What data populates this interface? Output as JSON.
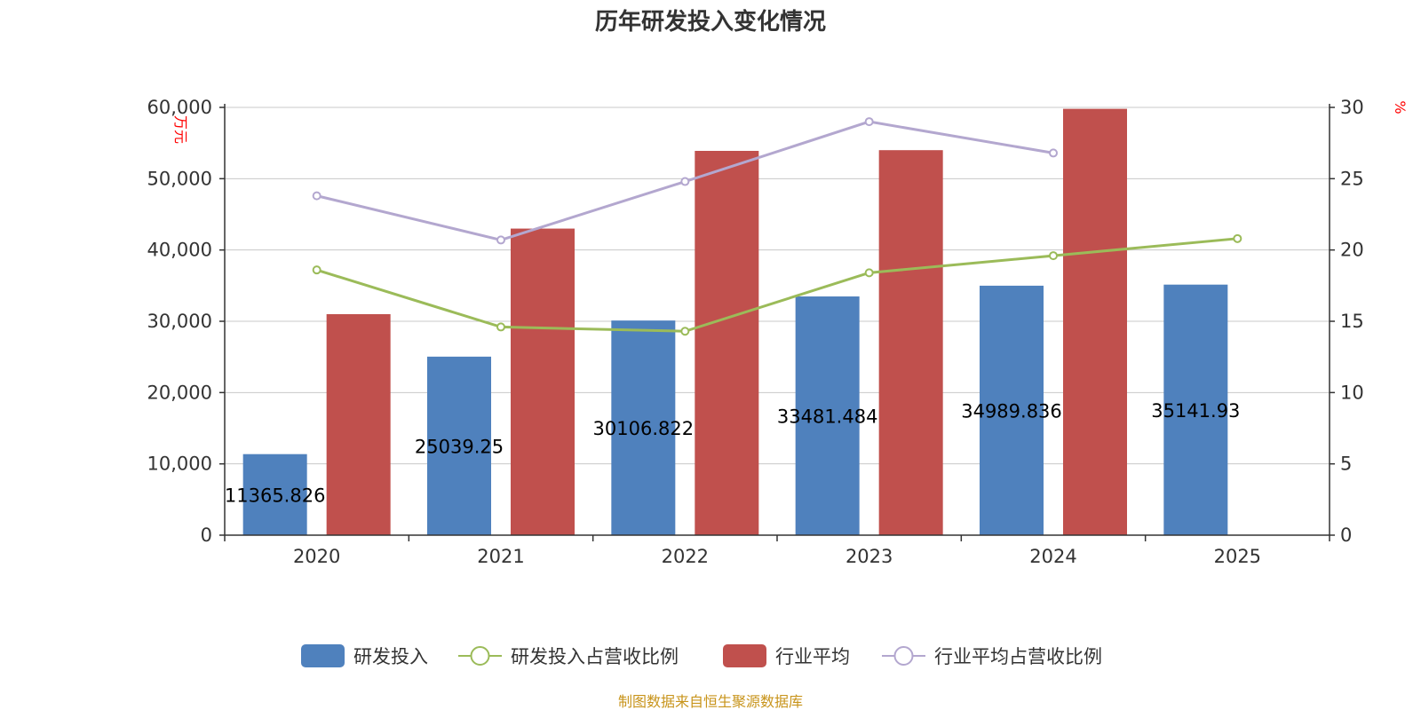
{
  "chart_data": {
    "type": "bar",
    "title": "历年研发投入变化情况",
    "categories": [
      "2020",
      "2021",
      "2022",
      "2023",
      "2024",
      "2025"
    ],
    "y_left": {
      "unit": "万元",
      "ylim": [
        0,
        60000
      ],
      "ticks": [
        "0",
        "10,000",
        "20,000",
        "30,000",
        "40,000",
        "50,000",
        "60,000"
      ]
    },
    "y_right": {
      "unit": "%",
      "ylim": [
        0,
        30
      ],
      "ticks": [
        "0",
        "5",
        "10",
        "15",
        "20",
        "25",
        "30"
      ]
    },
    "series": [
      {
        "name": "研发投入",
        "type": "bar",
        "axis": "left",
        "color": "#4f81bd",
        "values": [
          11365.826,
          25039.25,
          30106.822,
          33481.484,
          34989.836,
          35141.93
        ],
        "labels": [
          "11365.826",
          "25039.25",
          "30106.822",
          "33481.484",
          "34989.836",
          "35141.93"
        ]
      },
      {
        "name": "研发投入占营收比例",
        "type": "line",
        "axis": "right",
        "color": "#9bbb59",
        "values": [
          18.6,
          14.6,
          14.3,
          18.4,
          19.6,
          20.8
        ]
      },
      {
        "name": "行业平均",
        "type": "bar",
        "axis": "left",
        "color": "#c0504d",
        "values": [
          31000,
          43000,
          53900,
          54000,
          59800,
          null
        ]
      },
      {
        "name": "行业平均占营收比例",
        "type": "line",
        "axis": "right",
        "color": "#b3a7cf",
        "values": [
          23.8,
          20.7,
          24.8,
          29.0,
          26.8,
          null
        ]
      }
    ],
    "grid": true,
    "legend": "bottom-center"
  },
  "source_note": "制图数据来自恒生聚源数据库"
}
